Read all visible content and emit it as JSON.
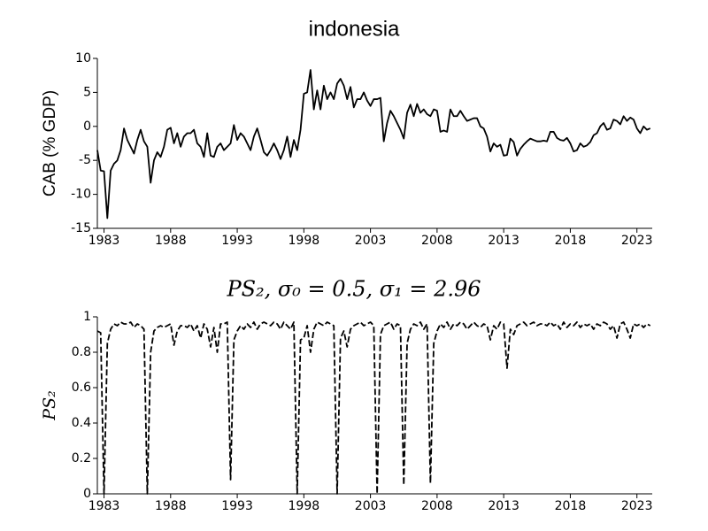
{
  "chart_data": [
    {
      "type": "line",
      "title": "indonesia",
      "ylabel": "CAB (% GDP)",
      "line_style": "solid",
      "x": [
        1982.5,
        1982.75,
        1983,
        1983.25,
        1983.5,
        1983.75,
        1984,
        1984.25,
        1984.5,
        1984.75,
        1985,
        1985.25,
        1985.5,
        1985.75,
        1986,
        1986.25,
        1986.5,
        1986.75,
        1987,
        1987.25,
        1987.5,
        1987.75,
        1988,
        1988.25,
        1988.5,
        1988.75,
        1989,
        1989.25,
        1989.5,
        1989.75,
        1990,
        1990.25,
        1990.5,
        1990.75,
        1991,
        1991.25,
        1991.5,
        1991.75,
        1992,
        1992.25,
        1992.5,
        1992.75,
        1993,
        1993.25,
        1993.5,
        1993.75,
        1994,
        1994.25,
        1994.5,
        1994.75,
        1995,
        1995.25,
        1995.5,
        1995.75,
        1996,
        1996.25,
        1996.5,
        1996.75,
        1997,
        1997.25,
        1997.5,
        1997.75,
        1998,
        1998.25,
        1998.5,
        1998.75,
        1999,
        1999.25,
        1999.5,
        1999.75,
        2000,
        2000.25,
        2000.5,
        2000.75,
        2001,
        2001.25,
        2001.5,
        2001.75,
        2002,
        2002.25,
        2002.5,
        2002.75,
        2003,
        2003.25,
        2003.5,
        2003.75,
        2004,
        2004.25,
        2004.5,
        2004.75,
        2005,
        2005.25,
        2005.5,
        2005.75,
        2006,
        2006.25,
        2006.5,
        2006.75,
        2007,
        2007.25,
        2007.5,
        2007.75,
        2008,
        2008.25,
        2008.5,
        2008.75,
        2009,
        2009.25,
        2009.5,
        2009.75,
        2010,
        2010.25,
        2010.5,
        2010.75,
        2011,
        2011.25,
        2011.5,
        2011.75,
        2012,
        2012.25,
        2012.5,
        2012.75,
        2013,
        2013.25,
        2013.5,
        2013.75,
        2014,
        2014.25,
        2014.5,
        2014.75,
        2015,
        2015.25,
        2015.5,
        2015.75,
        2016,
        2016.25,
        2016.5,
        2016.75,
        2017,
        2017.25,
        2017.5,
        2017.75,
        2018,
        2018.25,
        2018.5,
        2018.75,
        2019,
        2019.25,
        2019.5,
        2019.75,
        2020,
        2020.25,
        2020.5,
        2020.75,
        2021,
        2021.25,
        2021.5,
        2021.75,
        2022,
        2022.25,
        2022.5,
        2022.75,
        2023,
        2023.25,
        2023.5,
        2023.75,
        2024
      ],
      "values": [
        -3.5,
        -6.5,
        -6.6,
        -13.5,
        -6.5,
        -5.5,
        -5,
        -3.5,
        -0.3,
        -2,
        -3,
        -4,
        -2,
        -0.5,
        -2.2,
        -3,
        -8.3,
        -5,
        -3.8,
        -4.5,
        -3,
        -0.5,
        -0.2,
        -2.5,
        -1,
        -3,
        -1.5,
        -1,
        -1,
        -0.5,
        -2.5,
        -3,
        -4.5,
        -1,
        -4.3,
        -4.5,
        -3,
        -2.5,
        -3.5,
        -3,
        -2.5,
        0.2,
        -2,
        -1,
        -1.5,
        -2.5,
        -3.5,
        -1.5,
        -0.3,
        -2,
        -3.8,
        -4.3,
        -3.5,
        -2.5,
        -3.5,
        -4.8,
        -3.5,
        -1.5,
        -4.5,
        -2,
        -3.5,
        -0.5,
        4.8,
        5,
        8.3,
        2.5,
        5.3,
        2.5,
        6,
        4,
        5,
        4,
        6.3,
        7,
        6,
        4,
        5.8,
        2.8,
        4,
        4,
        5,
        3.8,
        3,
        4,
        4,
        4.2,
        -2.2,
        0.5,
        2.3,
        1.5,
        0.5,
        -0.5,
        -1.8,
        2,
        3.2,
        1.5,
        3.3,
        2,
        2.5,
        1.8,
        1.5,
        2.5,
        2.3,
        -0.8,
        -0.6,
        -0.8,
        2.5,
        1.5,
        1.5,
        2.3,
        1.5,
        0.8,
        1,
        1.2,
        1.2,
        0,
        -0.3,
        -1.5,
        -3.7,
        -2.5,
        -3,
        -2.7,
        -4.3,
        -4.2,
        -1.8,
        -2.3,
        -4.3,
        -3.3,
        -2.7,
        -2.2,
        -1.8,
        -2,
        -2.2,
        -2.2,
        -2.1,
        -2.2,
        -0.8,
        -0.8,
        -1.7,
        -2,
        -2.1,
        -1.7,
        -2.5,
        -3.7,
        -3.5,
        -2.5,
        -3,
        -2.8,
        -2.3,
        -1.3,
        -1,
        0,
        0.5,
        -0.5,
        -0.3,
        1,
        0.8,
        0.3,
        1.5,
        0.8,
        1.3,
        1,
        -0.3,
        -1,
        0,
        -0.5,
        -0.3
      ],
      "color": "#000000",
      "xlim": [
        1982.5,
        2024.15
      ],
      "ylim": [
        -15,
        10
      ],
      "xticks": [
        1983,
        1988,
        1993,
        1998,
        2003,
        2008,
        2013,
        2018,
        2023
      ],
      "yticks": [
        10,
        5,
        0,
        -5,
        -10,
        -15
      ]
    },
    {
      "type": "line",
      "title": "PS₂, σ₀ = 0.5, σ₁ = 2.96",
      "ylabel": "PS₂",
      "line_style": "dashed",
      "x": [
        1982.5,
        1982.75,
        1983,
        1983.25,
        1983.5,
        1983.75,
        1984,
        1984.25,
        1984.5,
        1984.75,
        1985,
        1985.25,
        1985.5,
        1985.75,
        1986,
        1986.25,
        1986.5,
        1986.75,
        1987,
        1987.25,
        1987.5,
        1987.75,
        1988,
        1988.25,
        1988.5,
        1988.75,
        1989,
        1989.25,
        1989.5,
        1989.75,
        1990,
        1990.25,
        1990.5,
        1990.75,
        1991,
        1991.25,
        1991.5,
        1991.75,
        1992,
        1992.25,
        1992.5,
        1992.75,
        1993,
        1993.25,
        1993.5,
        1993.75,
        1994,
        1994.25,
        1994.5,
        1994.75,
        1995,
        1995.25,
        1995.5,
        1995.75,
        1996,
        1996.25,
        1996.5,
        1996.75,
        1997,
        1997.25,
        1997.5,
        1997.75,
        1998,
        1998.25,
        1998.5,
        1998.75,
        1999,
        1999.25,
        1999.5,
        1999.75,
        2000,
        2000.25,
        2000.5,
        2000.75,
        2001,
        2001.25,
        2001.5,
        2001.75,
        2002,
        2002.25,
        2002.5,
        2002.75,
        2003,
        2003.25,
        2003.5,
        2003.75,
        2004,
        2004.25,
        2004.5,
        2004.75,
        2005,
        2005.25,
        2005.5,
        2005.75,
        2006,
        2006.25,
        2006.5,
        2006.75,
        2007,
        2007.25,
        2007.5,
        2007.75,
        2008,
        2008.25,
        2008.5,
        2008.75,
        2009,
        2009.25,
        2009.5,
        2009.75,
        2010,
        2010.25,
        2010.5,
        2010.75,
        2011,
        2011.25,
        2011.5,
        2011.75,
        2012,
        2012.25,
        2012.5,
        2012.75,
        2013,
        2013.25,
        2013.5,
        2013.75,
        2014,
        2014.25,
        2014.5,
        2014.75,
        2015,
        2015.25,
        2015.5,
        2015.75,
        2016,
        2016.25,
        2016.5,
        2016.75,
        2017,
        2017.25,
        2017.5,
        2017.75,
        2018,
        2018.25,
        2018.5,
        2018.75,
        2019,
        2019.25,
        2019.5,
        2019.75,
        2020,
        2020.25,
        2020.5,
        2020.75,
        2021,
        2021.25,
        2021.5,
        2021.75,
        2022,
        2022.25,
        2022.5,
        2022.75,
        2023,
        2023.25,
        2023.5,
        2023.75,
        2024
      ],
      "values": [
        0.92,
        0.91,
        0.0,
        0.85,
        0.93,
        0.96,
        0.95,
        0.97,
        0.96,
        0.96,
        0.97,
        0.94,
        0.96,
        0.95,
        0.93,
        0.0,
        0.8,
        0.92,
        0.94,
        0.95,
        0.94,
        0.95,
        0.96,
        0.84,
        0.92,
        0.95,
        0.95,
        0.94,
        0.96,
        0.92,
        0.95,
        0.88,
        0.96,
        0.93,
        0.83,
        0.94,
        0.8,
        0.96,
        0.96,
        0.97,
        0.08,
        0.87,
        0.92,
        0.95,
        0.93,
        0.96,
        0.94,
        0.97,
        0.93,
        0.96,
        0.97,
        0.96,
        0.95,
        0.97,
        0.96,
        0.93,
        0.97,
        0.95,
        0.93,
        0.97,
        0.0,
        0.87,
        0.88,
        0.95,
        0.8,
        0.93,
        0.97,
        0.96,
        0.95,
        0.97,
        0.96,
        0.95,
        0.0,
        0.88,
        0.92,
        0.83,
        0.93,
        0.95,
        0.96,
        0.97,
        0.95,
        0.96,
        0.97,
        0.95,
        0.0,
        0.9,
        0.95,
        0.96,
        0.97,
        0.93,
        0.96,
        0.95,
        0.05,
        0.85,
        0.93,
        0.96,
        0.95,
        0.97,
        0.93,
        0.96,
        0.06,
        0.85,
        0.92,
        0.96,
        0.94,
        0.97,
        0.93,
        0.96,
        0.95,
        0.97,
        0.96,
        0.93,
        0.95,
        0.97,
        0.95,
        0.94,
        0.96,
        0.95,
        0.87,
        0.95,
        0.93,
        0.97,
        0.96,
        0.71,
        0.93,
        0.9,
        0.95,
        0.96,
        0.97,
        0.95,
        0.96,
        0.97,
        0.95,
        0.96,
        0.96,
        0.95,
        0.97,
        0.95,
        0.96,
        0.93,
        0.97,
        0.94,
        0.96,
        0.95,
        0.97,
        0.94,
        0.96,
        0.95,
        0.96,
        0.93,
        0.96,
        0.95,
        0.97,
        0.96,
        0.93,
        0.95,
        0.88,
        0.96,
        0.97,
        0.93,
        0.88,
        0.96,
        0.95,
        0.96,
        0.94,
        0.96,
        0.95
      ],
      "color": "#000000",
      "xlim": [
        1982.5,
        2024.15
      ],
      "ylim": [
        0,
        1
      ],
      "xticks": [
        1983,
        1988,
        1993,
        1998,
        2003,
        2008,
        2013,
        2018,
        2023
      ],
      "yticks": [
        0,
        0.2,
        0.4,
        0.6,
        0.8,
        1
      ]
    }
  ]
}
